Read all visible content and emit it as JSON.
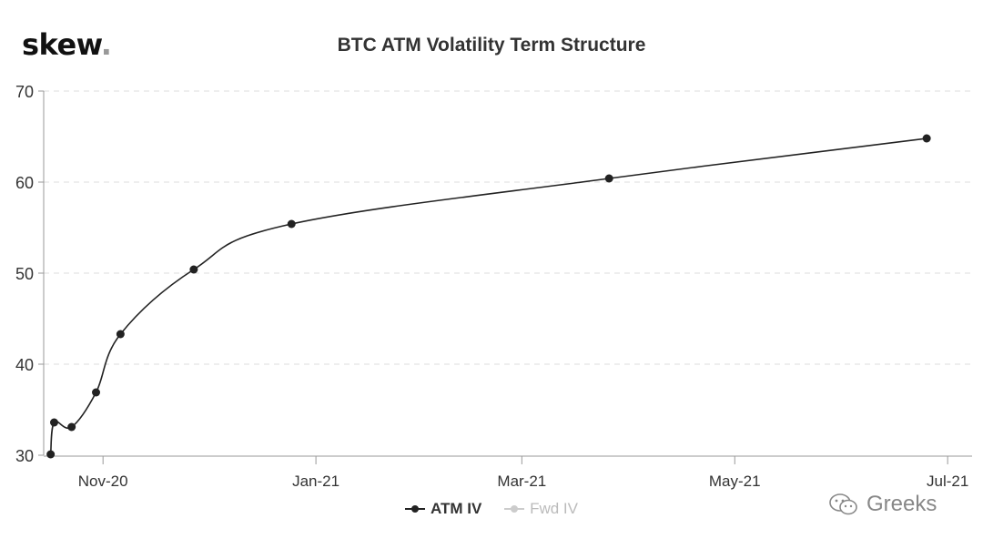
{
  "logo": {
    "text": "skew",
    "dot": "."
  },
  "watermark": {
    "text": "Greeks",
    "icon": "wechat-icon"
  },
  "chart_data": {
    "type": "line",
    "title": "BTC ATM Volatility Term Structure",
    "xlabel": "",
    "ylabel": "",
    "x_ticks": [
      "Nov-20",
      "Jan-21",
      "Mar-21",
      "May-21",
      "Jul-21"
    ],
    "x_tick_dates": [
      "2020-11-01",
      "2021-01-01",
      "2021-03-01",
      "2021-05-01",
      "2021-07-01"
    ],
    "y_ticks": [
      30,
      40,
      50,
      60,
      70
    ],
    "ylim": [
      30,
      70
    ],
    "xlim": [
      "2020-10-15",
      "2021-07-08"
    ],
    "grid": true,
    "legend_position": "bottom",
    "series": [
      {
        "name": "ATM IV",
        "color": "#222222",
        "points": [
          {
            "x": "2020-10-17",
            "y": 30.1
          },
          {
            "x": "2020-10-18",
            "y": 33.6
          },
          {
            "x": "2020-10-23",
            "y": 33.1
          },
          {
            "x": "2020-10-30",
            "y": 36.9
          },
          {
            "x": "2020-11-06",
            "y": 43.3
          },
          {
            "x": "2020-11-27",
            "y": 50.4
          },
          {
            "x": "2020-12-25",
            "y": 55.4
          },
          {
            "x": "2021-03-26",
            "y": 60.4
          },
          {
            "x": "2021-06-25",
            "y": 64.8
          }
        ]
      },
      {
        "name": "Fwd IV",
        "color": "#cccccc",
        "visible": false,
        "points": []
      }
    ]
  }
}
